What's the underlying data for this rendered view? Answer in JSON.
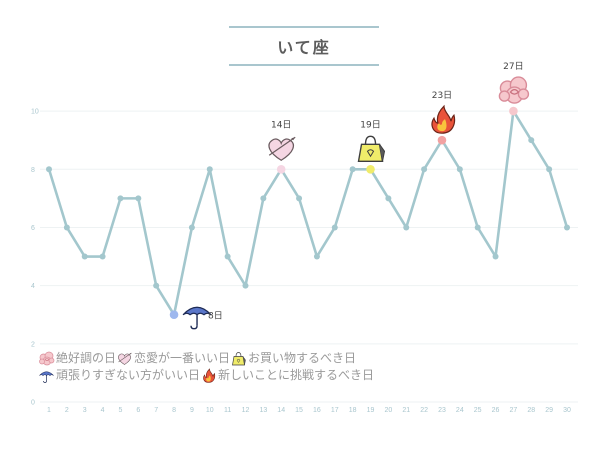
{
  "title": "いて座",
  "colors": {
    "line": "#a3c7cd",
    "grid": "#eef2f3",
    "tick": "#a9c6ce",
    "best": "#f6c8cd",
    "love": "#f5d6e3",
    "shopping": "#f0ec6a",
    "relax": "#9eb8ee",
    "challenge": "#f2a2a2"
  },
  "chart_data": {
    "type": "line",
    "x": [
      1,
      2,
      3,
      4,
      5,
      6,
      7,
      8,
      9,
      10,
      11,
      12,
      13,
      14,
      15,
      16,
      17,
      18,
      19,
      20,
      21,
      22,
      23,
      24,
      25,
      26,
      27,
      28,
      29,
      30
    ],
    "y": [
      8,
      6,
      5,
      5,
      7,
      7,
      4,
      3,
      6,
      8,
      5,
      4,
      7,
      8,
      7,
      5,
      6,
      8,
      8,
      7,
      6,
      8,
      9,
      8,
      6,
      5,
      10,
      9,
      8,
      6
    ],
    "ylim": [
      0,
      11
    ],
    "yticks": [
      0,
      2,
      4,
      6,
      8,
      10
    ],
    "grid": true,
    "annotations": [
      {
        "x": 8,
        "label": "8日",
        "type": "relax",
        "icon": "umbrella-icon",
        "side": "right"
      },
      {
        "x": 14,
        "label": "14日",
        "type": "love",
        "icon": "heart-icon",
        "side": "above"
      },
      {
        "x": 19,
        "label": "19日",
        "type": "shopping",
        "icon": "bag-icon",
        "side": "above"
      },
      {
        "x": 23,
        "label": "23日",
        "type": "challenge",
        "icon": "flame-icon",
        "side": "above"
      },
      {
        "x": 27,
        "label": "27日",
        "type": "best",
        "icon": "flower-icon",
        "side": "above"
      }
    ]
  },
  "legend": {
    "row1": [
      {
        "icon": "flower-icon",
        "label": "絶好調の日"
      },
      {
        "icon": "heart-icon",
        "label": "恋愛が一番いい日"
      },
      {
        "icon": "bag-icon",
        "label": "お買い物するべき日"
      }
    ],
    "row2": [
      {
        "icon": "umbrella-icon",
        "label": "頑張りすぎない方がいい日"
      },
      {
        "icon": "flame-icon",
        "label": "新しいことに挑戦するべき日"
      }
    ]
  }
}
